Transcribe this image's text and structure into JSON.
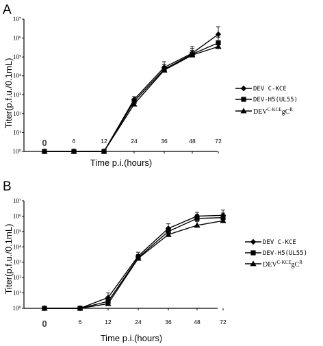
{
  "chart_data": [
    {
      "panel": "A",
      "type": "line",
      "ylabel": "Titer(p.f.u./0.1mL)",
      "xlabel": "Time p.i.(hours)",
      "y_scale": "log10",
      "ylim_exp": [
        0,
        7
      ],
      "y_tick_labels": [
        "10⁰",
        "10¹",
        "10²",
        "10³",
        "10⁴",
        "10⁵",
        "10⁶",
        "10⁷"
      ],
      "categories": [
        "0",
        "6",
        "12",
        "24",
        "36",
        "48",
        "72"
      ],
      "legend_position": "right",
      "series": [
        {
          "name": "DEV C-KCE",
          "marker": "diamond",
          "log_values": [
            0,
            0,
            0,
            2.75,
            4.45,
            5.2,
            6.2
          ],
          "err": [
            0,
            0,
            0,
            0.15,
            0.3,
            0.35,
            0.4
          ]
        },
        {
          "name": "DEV-H5(UL55)",
          "marker": "square",
          "log_values": [
            0,
            0,
            0,
            2.65,
            4.35,
            5.15,
            5.75
          ],
          "err": [
            0,
            0,
            0,
            0.1,
            0.25,
            0.3,
            0.3
          ]
        },
        {
          "name": "DEVC-KCEgCR",
          "marker": "triangle",
          "log_values": [
            0,
            0,
            0,
            2.5,
            4.3,
            5.1,
            5.55
          ],
          "err": [
            0,
            0,
            0,
            0.1,
            0.2,
            0.25,
            0.3
          ]
        }
      ]
    },
    {
      "panel": "B",
      "type": "line",
      "ylabel": "Titer(p.f.u./0.1mL)",
      "xlabel": "Time p.i.(hours)",
      "y_scale": "log10",
      "ylim_exp": [
        0,
        7
      ],
      "y_tick_labels": [
        "10⁰",
        "10¹",
        "10²",
        "10³",
        "10⁴",
        "10⁵",
        "10⁶",
        "10⁷"
      ],
      "categories": [
        "0",
        "6",
        "12",
        "24",
        "36",
        "48",
        "72"
      ],
      "legend_position": "right",
      "series": [
        {
          "name": "DEV C-KCE",
          "marker": "diamond",
          "log_values": [
            0,
            0,
            0.7,
            3.4,
            5.2,
            6.0,
            6.05
          ],
          "err": [
            0,
            0,
            0.3,
            0.25,
            0.3,
            0.25,
            0.35
          ]
        },
        {
          "name": "DEV-H5(UL55)",
          "marker": "square",
          "log_values": [
            0,
            0,
            0.45,
            3.3,
            5.0,
            5.85,
            5.9
          ],
          "err": [
            0,
            0,
            0.2,
            0.2,
            0.25,
            0.25,
            0.3
          ]
        },
        {
          "name": "DEVC-KCEgCR",
          "marker": "triangle",
          "log_values": [
            0,
            0,
            0.3,
            3.25,
            4.8,
            5.4,
            5.7
          ],
          "err": [
            0,
            0,
            0.15,
            0.2,
            0.25,
            0.25,
            0.3
          ]
        }
      ]
    }
  ]
}
